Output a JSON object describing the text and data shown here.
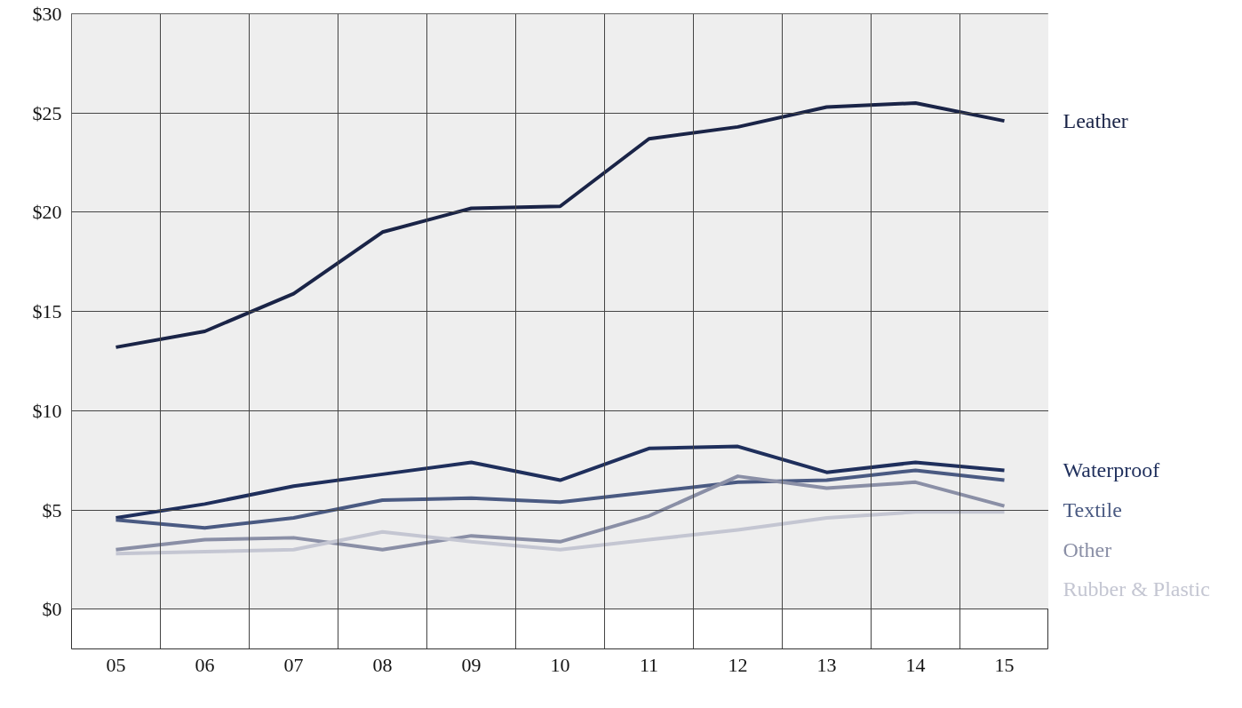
{
  "chart_data": {
    "type": "line",
    "x": [
      2005,
      2006,
      2007,
      2008,
      2009,
      2010,
      2011,
      2012,
      2013,
      2014,
      2015
    ],
    "series": [
      {
        "name": "Leather",
        "color": "#1a2447",
        "values": [
          13.2,
          14.0,
          15.9,
          19.0,
          20.2,
          20.3,
          23.7,
          24.3,
          25.3,
          25.5,
          24.6
        ]
      },
      {
        "name": "Waterproof",
        "color": "#1f2f5c",
        "values": [
          4.6,
          5.3,
          6.2,
          6.8,
          7.4,
          6.5,
          8.1,
          8.2,
          6.9,
          7.4,
          7.0
        ]
      },
      {
        "name": "Textile",
        "color": "#4a5a82",
        "values": [
          4.5,
          4.1,
          4.6,
          5.5,
          5.6,
          5.4,
          5.9,
          6.4,
          6.5,
          7.0,
          6.5
        ]
      },
      {
        "name": "Other",
        "color": "#8a8fa6",
        "values": [
          3.0,
          3.5,
          3.6,
          3.0,
          3.7,
          3.4,
          4.7,
          6.7,
          6.1,
          6.4,
          5.2
        ]
      },
      {
        "name": "Rubber & Plastic",
        "color": "#c4c6d2",
        "values": [
          2.8,
          2.9,
          3.0,
          3.9,
          3.4,
          3.0,
          3.5,
          4.0,
          4.6,
          4.9,
          4.9
        ]
      }
    ],
    "xlim": [
      2004.5,
      2015.5
    ],
    "xticks": [
      {
        "value": 2004.5,
        "label": null
      },
      {
        "value": 2005,
        "label": "05"
      },
      {
        "value": 2005.5,
        "label": null
      },
      {
        "value": 2006,
        "label": "06"
      },
      {
        "value": 2006.5,
        "label": null
      },
      {
        "value": 2007,
        "label": "07"
      },
      {
        "value": 2007.5,
        "label": null
      },
      {
        "value": 2008,
        "label": "08"
      },
      {
        "value": 2008.5,
        "label": null
      },
      {
        "value": 2009,
        "label": "09"
      },
      {
        "value": 2009.5,
        "label": null
      },
      {
        "value": 2010,
        "label": "10"
      },
      {
        "value": 2010.5,
        "label": null
      },
      {
        "value": 2011,
        "label": "11"
      },
      {
        "value": 2011.5,
        "label": null
      },
      {
        "value": 2012,
        "label": "12"
      },
      {
        "value": 2012.5,
        "label": null
      },
      {
        "value": 2013,
        "label": "13"
      },
      {
        "value": 2013.5,
        "label": null
      },
      {
        "value": 2014,
        "label": "14"
      },
      {
        "value": 2014.5,
        "label": null
      },
      {
        "value": 2015,
        "label": "15"
      },
      {
        "value": 2015.5,
        "label": null
      }
    ],
    "ylim": [
      -2,
      30
    ],
    "yticks": [
      {
        "value": 0,
        "label": "$0"
      },
      {
        "value": 5,
        "label": "$5"
      },
      {
        "value": 10,
        "label": "$10"
      },
      {
        "value": 15,
        "label": "$15"
      },
      {
        "value": 20,
        "label": "$20"
      },
      {
        "value": 25,
        "label": "$25"
      },
      {
        "value": 30,
        "label": "$30"
      }
    ],
    "bands": [
      {
        "axis": "y",
        "from": 0,
        "to": 30,
        "color": "#eeeeee"
      }
    ],
    "grid": true,
    "line_style": "solid",
    "marker": "none"
  }
}
